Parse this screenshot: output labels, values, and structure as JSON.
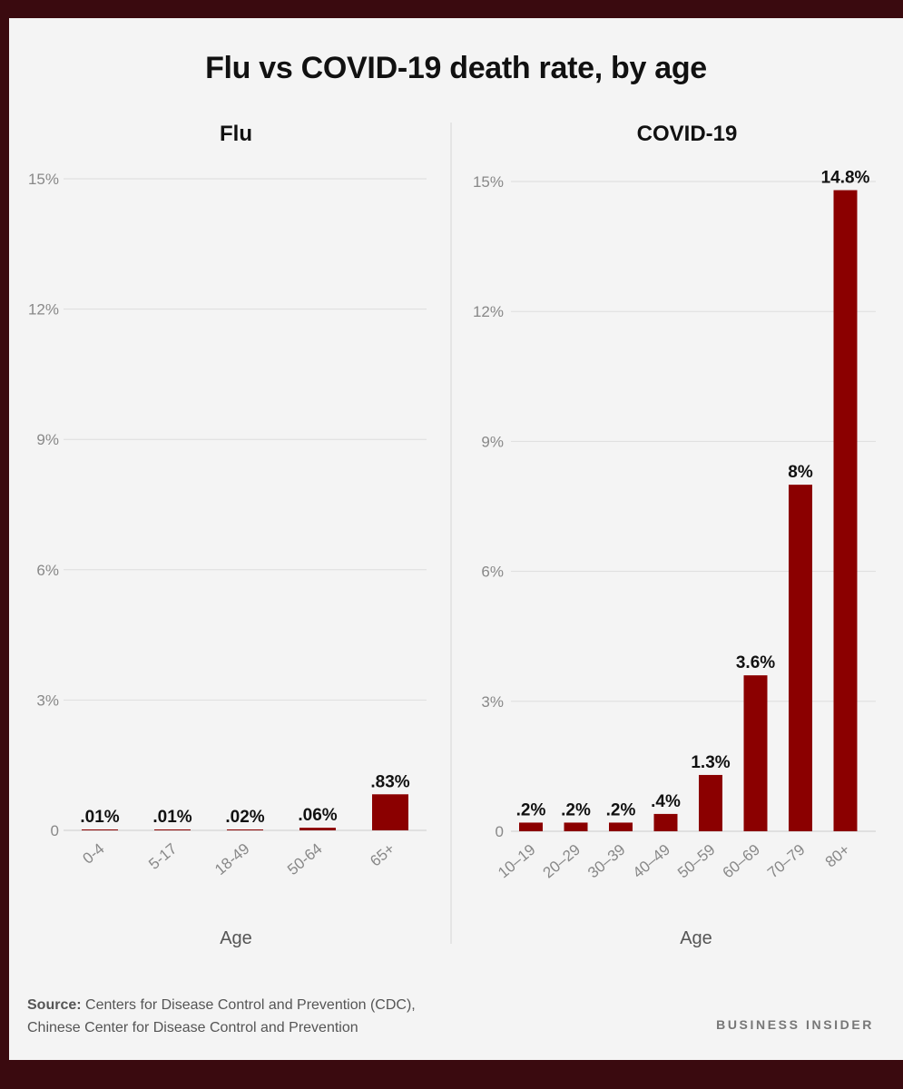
{
  "title": "Flu vs COVID-19 death rate, by age",
  "source_label": "Source:",
  "source_line1": "Centers for Disease Control and Prevention (CDC),",
  "source_line2": "Chinese Center for Disease Control and Prevention",
  "brand": "BUSINESS INSIDER",
  "colors": {
    "bar": "#8b0000",
    "grid": "#dddddd",
    "axis": "#cccccc",
    "tick": "#888888",
    "label": "#111111",
    "background": "#f4f4f4"
  },
  "chart_data": [
    {
      "type": "bar",
      "title": "Flu",
      "categories": [
        "0-4",
        "5-17",
        "18-49",
        "50-64",
        "65+"
      ],
      "values": [
        0.01,
        0.01,
        0.02,
        0.06,
        0.83
      ],
      "value_labels": [
        ".01%",
        ".01%",
        ".02%",
        ".06%",
        ".83%"
      ],
      "xlabel": "Age",
      "ylabel": "",
      "ylim": [
        0,
        15
      ],
      "yticks": [
        0,
        3,
        6,
        9,
        12,
        15
      ],
      "ytick_labels": [
        "0",
        "3%",
        "6%",
        "9%",
        "12%",
        "15%"
      ],
      "grid": true
    },
    {
      "type": "bar",
      "title": "COVID-19",
      "categories": [
        "10–19",
        "20–29",
        "30–39",
        "40–49",
        "50–59",
        "60–69",
        "70–79",
        "80+"
      ],
      "values": [
        0.2,
        0.2,
        0.2,
        0.4,
        1.3,
        3.6,
        8,
        14.8
      ],
      "value_labels": [
        ".2%",
        ".2%",
        ".2%",
        ".4%",
        "1.3%",
        "3.6%",
        "8%",
        "14.8%"
      ],
      "xlabel": "Age",
      "ylabel": "",
      "ylim": [
        0,
        15
      ],
      "yticks": [
        0,
        3,
        6,
        9,
        12,
        15
      ],
      "ytick_labels": [
        "0",
        "3%",
        "6%",
        "9%",
        "12%",
        "15%"
      ],
      "grid": true
    }
  ]
}
